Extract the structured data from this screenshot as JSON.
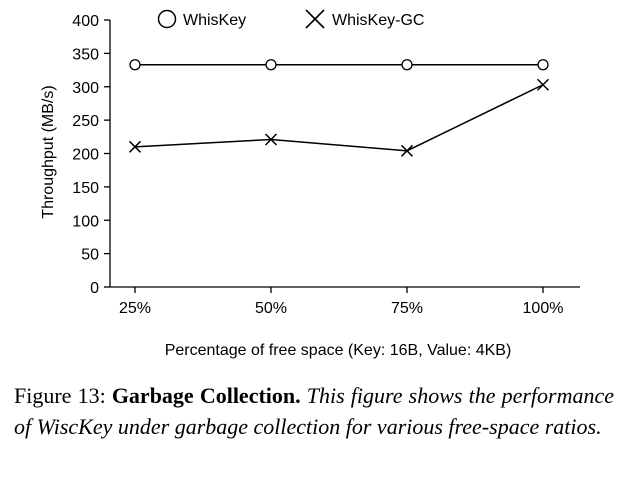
{
  "chart_data": {
    "type": "line",
    "categories": [
      "25%",
      "50%",
      "75%",
      "100%"
    ],
    "xlabel": "Percentage of free space (Key: 16B, Value: 4KB)",
    "ylabel": "Throughput (MB/s)",
    "ylim": [
      0,
      400
    ],
    "yticks": [
      0,
      50,
      100,
      150,
      200,
      250,
      300,
      350,
      400
    ],
    "grid": false,
    "legend_position": "top",
    "series": [
      {
        "name": "WhisKey",
        "marker": "circle",
        "color": "#000000",
        "values": [
          333,
          333,
          333,
          333
        ]
      },
      {
        "name": "WhisKey-GC",
        "marker": "x",
        "color": "#000000",
        "values": [
          210,
          221,
          204,
          303
        ]
      }
    ]
  },
  "caption": {
    "prefix": "Figure 13:",
    "title": "Garbage Collection.",
    "body": "This figure shows the performance of WiscKey under garbage collection for various free-space ratios."
  }
}
